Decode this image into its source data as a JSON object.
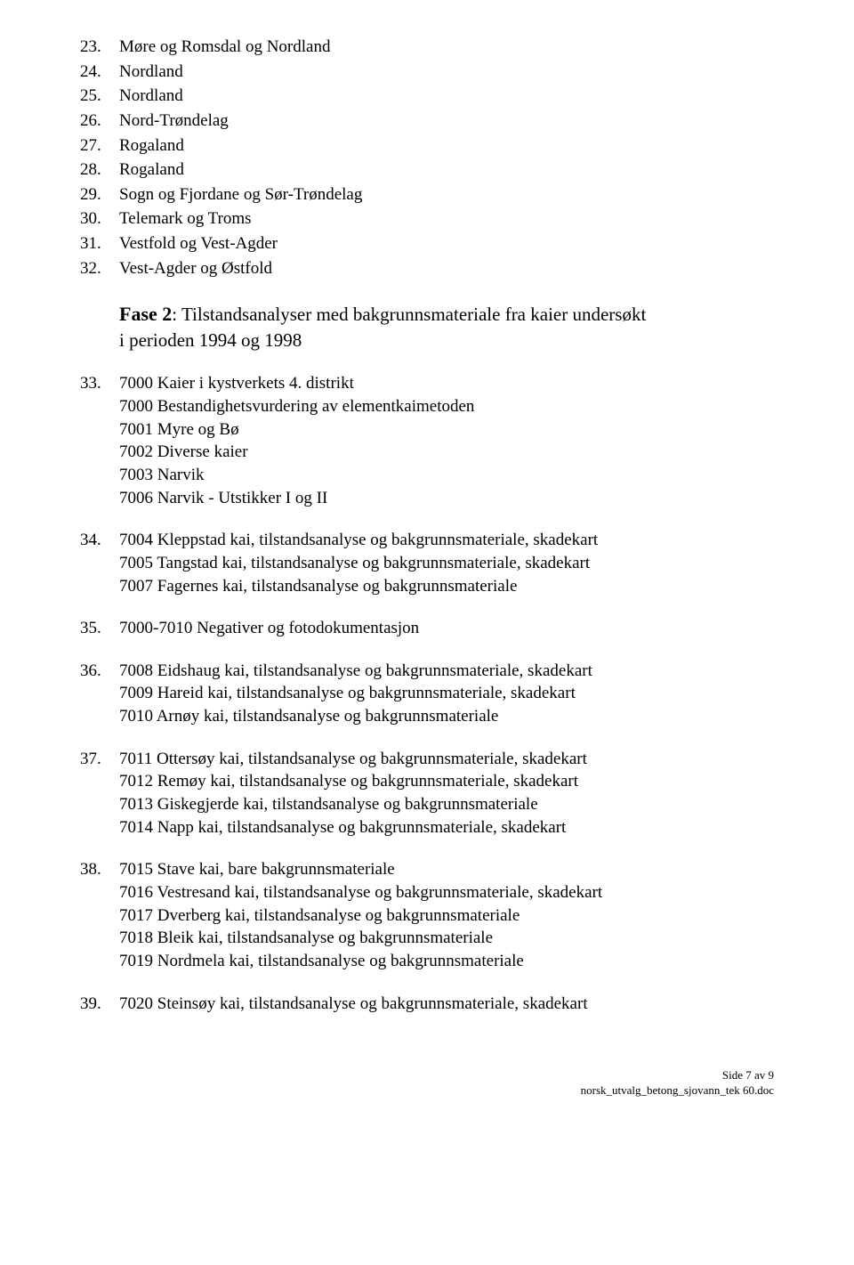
{
  "items_top": [
    {
      "num": "23.",
      "lines": [
        "Møre og Romsdal og Nordland"
      ]
    },
    {
      "num": "24.",
      "lines": [
        "Nordland"
      ]
    },
    {
      "num": "25.",
      "lines": [
        "Nordland"
      ]
    },
    {
      "num": "26.",
      "lines": [
        "Nord-Trøndelag"
      ]
    },
    {
      "num": "27.",
      "lines": [
        "Rogaland"
      ]
    },
    {
      "num": "28.",
      "lines": [
        "Rogaland"
      ]
    },
    {
      "num": "29.",
      "lines": [
        "Sogn og Fjordane og Sør-Trøndelag"
      ]
    },
    {
      "num": "30.",
      "lines": [
        "Telemark og Troms"
      ]
    },
    {
      "num": "31.",
      "lines": [
        "Vestfold og Vest-Agder"
      ]
    },
    {
      "num": "32.",
      "lines": [
        "Vest-Agder og Østfold"
      ]
    }
  ],
  "phase": {
    "bold": "Fase 2",
    "rest1": ": Tilstandsanalyser med bakgrunnsmateriale fra kaier undersøkt",
    "rest2": "i perioden 1994 og 1998"
  },
  "items_bottom": [
    {
      "num": "33.",
      "lines": [
        "7000  Kaier i kystverkets 4. distrikt",
        "7000  Bestandighetsvurdering av elementkaimetoden",
        "7001  Myre og Bø",
        "7002  Diverse kaier",
        "7003  Narvik",
        "7006  Narvik - Utstikker I og II"
      ]
    },
    {
      "num": "34.",
      "lines": [
        "7004  Kleppstad kai, tilstandsanalyse og bakgrunnsmateriale, skadekart",
        "7005  Tangstad kai, tilstandsanalyse og bakgrunnsmateriale, skadekart",
        "7007  Fagernes kai, tilstandsanalyse og bakgrunnsmateriale"
      ]
    },
    {
      "num": "35.",
      "lines": [
        "7000-7010   Negativer og fotodokumentasjon"
      ]
    },
    {
      "num": "36.",
      "lines": [
        "7008  Eidshaug kai, tilstandsanalyse og bakgrunnsmateriale, skadekart",
        "7009  Hareid kai, tilstandsanalyse og bakgrunnsmateriale, skadekart",
        "7010  Arnøy kai, tilstandsanalyse og bakgrunnsmateriale"
      ]
    },
    {
      "num": "37.",
      "lines": [
        "7011  Ottersøy kai, tilstandsanalyse og bakgrunnsmateriale, skadekart",
        "7012  Remøy kai, tilstandsanalyse og bakgrunnsmateriale, skadekart",
        "7013  Giskegjerde kai, tilstandsanalyse og bakgrunnsmateriale",
        "7014  Napp kai, tilstandsanalyse og bakgrunnsmateriale, skadekart"
      ]
    },
    {
      "num": "38.",
      "lines": [
        "7015  Stave kai, bare bakgrunnsmateriale",
        "7016  Vestresand kai, tilstandsanalyse og bakgrunnsmateriale, skadekart",
        "7017  Dverberg kai, tilstandsanalyse og bakgrunnsmateriale",
        "7018  Bleik kai, tilstandsanalyse og bakgrunnsmateriale",
        "7019  Nordmela kai, tilstandsanalyse og bakgrunnsmateriale"
      ]
    },
    {
      "num": "39.",
      "lines": [
        "7020  Steinsøy kai, tilstandsanalyse og bakgrunnsmateriale, skadekart"
      ]
    }
  ],
  "footer": {
    "page": "Side 7 av 9",
    "file": "norsk_utvalg_betong_sjovann_tek 60.doc"
  }
}
